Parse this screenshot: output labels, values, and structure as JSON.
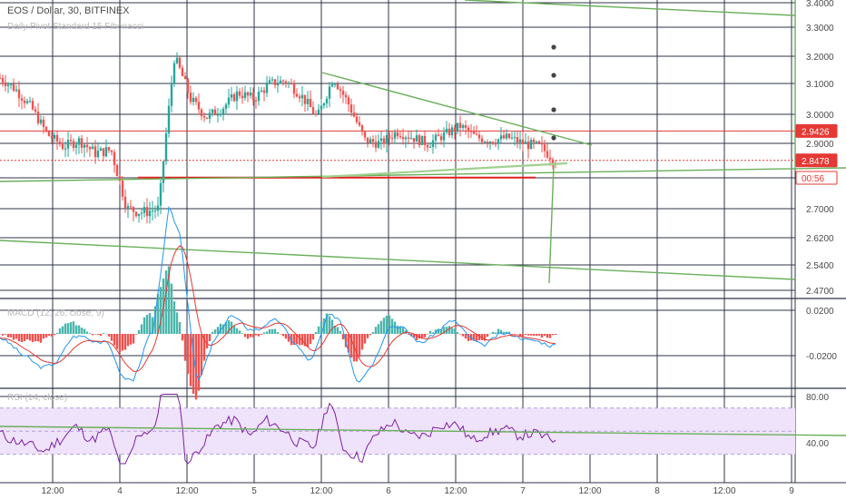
{
  "header": {
    "symbol_line": "EOS / Dollar, 30, BITFINEX",
    "indicator_line": "Daily Pivot Standard 15 Fibonacci",
    "macd_label": "MACD (12, 26, close, 9)",
    "rsi_label": "RSI (14, close)"
  },
  "colors": {
    "up": "#26a69a",
    "down": "#ef5350",
    "trendline": "#6aaf5a",
    "macd_line": "#2196f3",
    "signal_line": "#e53935",
    "rsi_line": "#7b1fa2",
    "rsi_band": "#efe3fb",
    "price_badge": "#e53935",
    "grid": "#2f3447"
  },
  "chart_data": [
    {
      "type": "candlestick",
      "pane": "price",
      "y_axis_ticks": [
        "3.4000",
        "3.3000",
        "3.2000",
        "3.1000",
        "3.0000",
        "2.9000",
        "2.7000",
        "2.6200",
        "2.5400",
        "2.4700"
      ],
      "price_tags": [
        {
          "label": "2.9426",
          "value": 2.9426,
          "style": "red-filled"
        },
        {
          "label": "2.8478",
          "value": 2.8478,
          "style": "red-filled"
        },
        {
          "label": "00:56",
          "value": 2.8,
          "style": "red-outline"
        }
      ],
      "horizontal_lines": [
        {
          "value": 2.9426,
          "color": "red"
        },
        {
          "value": 2.8478,
          "color": "red",
          "dashed": true
        },
        {
          "value": 2.795,
          "color": "red",
          "segment": true
        }
      ],
      "x_axis_labels": [
        "12:00",
        "4",
        "12:00",
        "5",
        "12:00",
        "6",
        "12:00",
        "7",
        "12:00",
        "8",
        "12:00",
        "9"
      ],
      "approx_close_path": [
        3.12,
        3.08,
        3.02,
        2.93,
        2.89,
        2.91,
        2.87,
        2.88,
        2.7,
        2.69,
        2.7,
        3.2,
        3.05,
        2.99,
        3.02,
        3.07,
        3.05,
        3.1,
        3.11,
        3.06,
        2.99,
        3.12,
        3.03,
        2.91,
        2.9,
        2.94,
        2.92,
        2.9,
        2.93,
        2.96,
        2.92,
        2.91,
        2.92,
        2.9,
        2.89,
        2.85
      ]
    },
    {
      "type": "histogram+line",
      "pane": "macd",
      "y_axis_ticks": [
        "0.0200",
        "-0.0200"
      ]
    },
    {
      "type": "line",
      "pane": "rsi",
      "y_axis_ticks": [
        "80.00",
        "40.00"
      ],
      "band": [
        30,
        70
      ]
    }
  ]
}
